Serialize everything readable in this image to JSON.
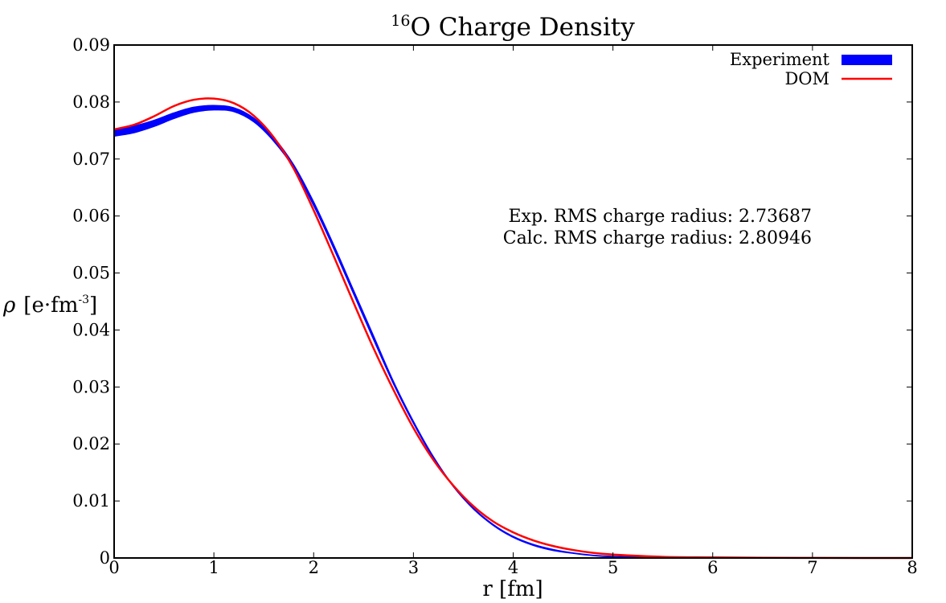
{
  "chart_data": {
    "type": "line",
    "title": {
      "superscript": "16",
      "text": "O Charge Density"
    },
    "xlabel": "r [fm]",
    "ylabel": {
      "prefix": "ρ",
      "text": "[e·fm",
      "superscript": "-3",
      "suffix": "]"
    },
    "xlim": [
      0,
      8
    ],
    "ylim": [
      0,
      0.09
    ],
    "xticks": [
      {
        "value": 0,
        "label": "0"
      },
      {
        "value": 1,
        "label": "1"
      },
      {
        "value": 2,
        "label": "2"
      },
      {
        "value": 3,
        "label": "3"
      },
      {
        "value": 4,
        "label": "4"
      },
      {
        "value": 5,
        "label": "5"
      },
      {
        "value": 6,
        "label": "6"
      },
      {
        "value": 7,
        "label": "7"
      },
      {
        "value": 8,
        "label": "8"
      }
    ],
    "yticks": [
      {
        "value": 0,
        "label": "0"
      },
      {
        "value": 0.01,
        "label": "0.01"
      },
      {
        "value": 0.02,
        "label": "0.02"
      },
      {
        "value": 0.03,
        "label": "0.03"
      },
      {
        "value": 0.04,
        "label": "0.04"
      },
      {
        "value": 0.05,
        "label": "0.05"
      },
      {
        "value": 0.06,
        "label": "0.06"
      },
      {
        "value": 0.07,
        "label": "0.07"
      },
      {
        "value": 0.08,
        "label": "0.08"
      },
      {
        "value": 0.09,
        "label": "0.09"
      }
    ],
    "grid": false,
    "legend_position": "top-right",
    "series": [
      {
        "name": "Experiment",
        "style": "band",
        "color": "#0000ff",
        "x": [
          0,
          0.2,
          0.4,
          0.6,
          0.8,
          1.0,
          1.2,
          1.4,
          1.6,
          1.8,
          2.0,
          2.2,
          2.4,
          2.6,
          2.8,
          3.0,
          3.2,
          3.4,
          3.6,
          3.8,
          4.0,
          4.2,
          4.4,
          4.6,
          4.8,
          5.0,
          5.5,
          6.0,
          6.5,
          7.0,
          7.5,
          8.0
        ],
        "upper": [
          0.0752,
          0.0758,
          0.0768,
          0.0781,
          0.0791,
          0.0794,
          0.079,
          0.0772,
          0.0738,
          0.069,
          0.0625,
          0.055,
          0.047,
          0.039,
          0.031,
          0.024,
          0.0178,
          0.0127,
          0.0088,
          0.0059,
          0.0038,
          0.0024,
          0.0015,
          0.0009,
          0.0005,
          0.0003,
          0.0001,
          3e-05,
          1e-05,
          0,
          0,
          0
        ],
        "lower": [
          0.074,
          0.0746,
          0.0757,
          0.0771,
          0.0782,
          0.0786,
          0.0783,
          0.0765,
          0.0731,
          0.0684,
          0.0618,
          0.0543,
          0.0463,
          0.0383,
          0.0305,
          0.0236,
          0.0175,
          0.0125,
          0.0086,
          0.0057,
          0.0036,
          0.0022,
          0.0013,
          0.0008,
          0.0004,
          0.0002,
          5e-05,
          1e-05,
          0,
          0,
          0,
          0
        ]
      },
      {
        "name": "DOM",
        "style": "line",
        "color": "#ff0000",
        "x": [
          0,
          0.2,
          0.4,
          0.6,
          0.8,
          1.0,
          1.2,
          1.4,
          1.6,
          1.8,
          2.0,
          2.2,
          2.4,
          2.6,
          2.8,
          3.0,
          3.2,
          3.4,
          3.6,
          3.8,
          4.0,
          4.2,
          4.4,
          4.6,
          4.8,
          5.0,
          5.5,
          6.0,
          6.5,
          7.0,
          7.5,
          8.0
        ],
        "y": [
          0.0752,
          0.076,
          0.0775,
          0.0793,
          0.0804,
          0.0806,
          0.0798,
          0.0776,
          0.0738,
          0.0683,
          0.061,
          0.053,
          0.0448,
          0.0368,
          0.0295,
          0.0228,
          0.0172,
          0.0127,
          0.0091,
          0.0064,
          0.0045,
          0.0031,
          0.0021,
          0.0014,
          0.0009,
          0.0006,
          0.0002,
          0.0001,
          3e-05,
          1e-05,
          0,
          0
        ]
      }
    ],
    "annotations": [
      "Exp. RMS charge radius: 2.73687",
      "Calc. RMS charge radius: 2.80946"
    ]
  }
}
